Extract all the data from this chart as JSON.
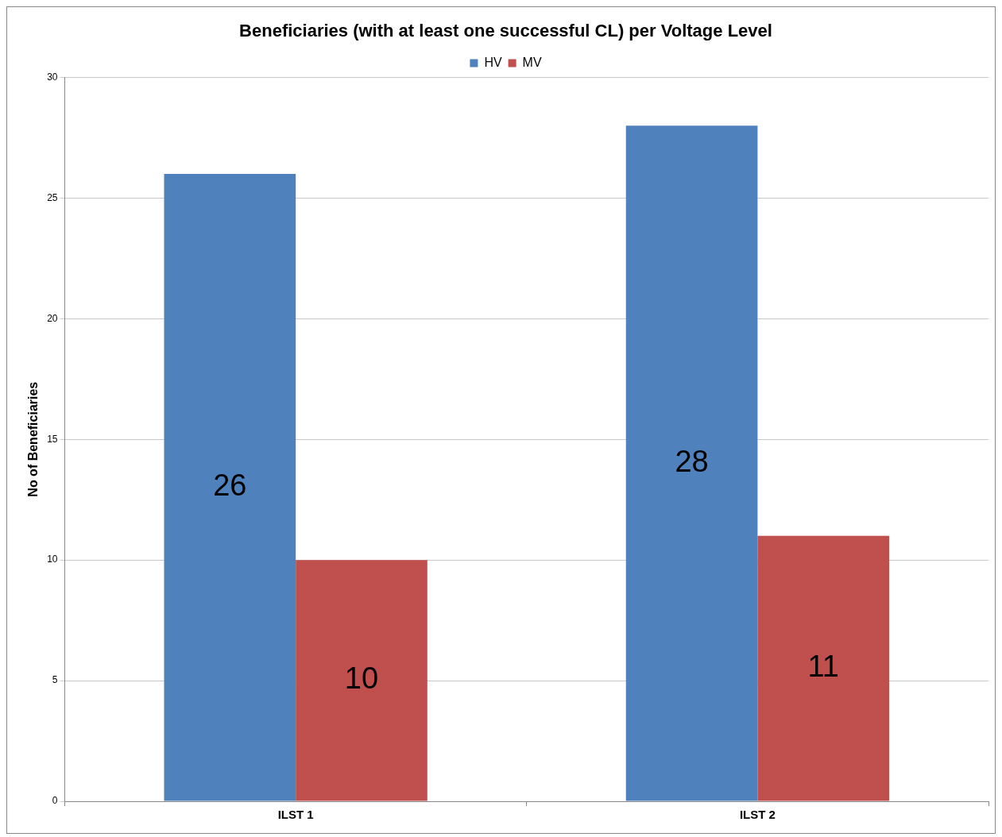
{
  "chart_data": {
    "type": "bar",
    "title": "Beneficiaries (with at least one successful CL) per Voltage Level",
    "ylabel": "No of Beneficiaries",
    "categories": [
      "ILST 1",
      "ILST 2"
    ],
    "series": [
      {
        "name": "HV",
        "color": "#4f81bd",
        "values": [
          26,
          28
        ]
      },
      {
        "name": "MV",
        "color": "#c0504d",
        "values": [
          10,
          11
        ]
      }
    ],
    "ylim": [
      0,
      30
    ],
    "yticks": [
      0,
      5,
      10,
      15,
      20,
      25,
      30
    ],
    "grid": "y",
    "legend": "top",
    "data_labels": true
  }
}
